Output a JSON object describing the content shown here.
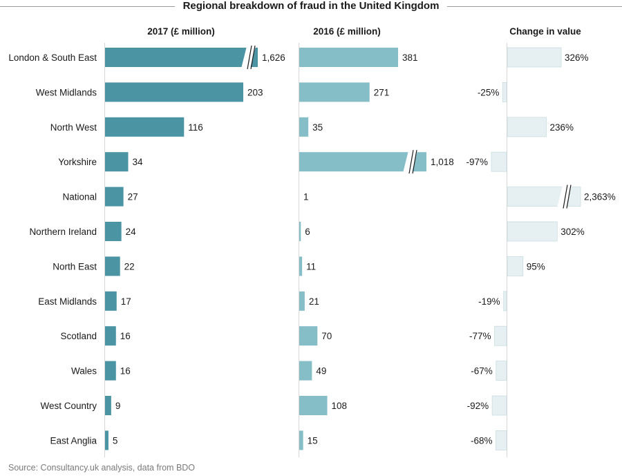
{
  "title": "Regional breakdown of fraud in the United Kingdom",
  "source": "Source: Consultancy.uk analysis, data from BDO",
  "colors": {
    "y2017": "#4a94a4",
    "y2016": "#86bec8",
    "change": "#e6f0f2",
    "change_border": "#c9dde1"
  },
  "chart_data": [
    {
      "type": "bar",
      "title": "2017 (£ million)",
      "categories": [
        "London & South East",
        "West Midlands",
        "North West",
        "Yorkshire",
        "National",
        "Northern Ireland",
        "North East",
        "East Midlands",
        "Scotland",
        "Wales",
        "West Country",
        "East Anglia"
      ],
      "values": [
        1626,
        203,
        116,
        34,
        27,
        24,
        22,
        17,
        16,
        16,
        9,
        5
      ],
      "labels": [
        "1,626",
        "203",
        "116",
        "34",
        "27",
        "24",
        "22",
        "17",
        "16",
        "16",
        "9",
        "5"
      ],
      "axis_break": "London & South East"
    },
    {
      "type": "bar",
      "title": "2016 (£ million)",
      "categories": [
        "London & South East",
        "West Midlands",
        "North West",
        "Yorkshire",
        "National",
        "Northern Ireland",
        "North East",
        "East Midlands",
        "Scotland",
        "Wales",
        "West Country",
        "East Anglia"
      ],
      "values": [
        381,
        271,
        35,
        1018,
        1,
        6,
        11,
        21,
        70,
        49,
        108,
        15
      ],
      "labels": [
        "381",
        "271",
        "35",
        "1,018",
        "1",
        "6",
        "11",
        "21",
        "70",
        "49",
        "108",
        "15"
      ],
      "axis_break": "Yorkshire"
    },
    {
      "type": "bar",
      "title": "Change in value",
      "categories": [
        "London & South East",
        "West Midlands",
        "North West",
        "Yorkshire",
        "National",
        "Northern Ireland",
        "North East",
        "East Midlands",
        "Scotland",
        "Wales",
        "West Country",
        "East Anglia"
      ],
      "values": [
        326,
        -25,
        236,
        -97,
        2363,
        302,
        95,
        -19,
        -77,
        -67,
        -92,
        -68
      ],
      "labels": [
        "326%",
        "-25%",
        "236%",
        "-97%",
        "2,363%",
        "302%",
        "95%",
        "-19%",
        "-77%",
        "-67%",
        "-92%",
        "-68%"
      ],
      "axis_break": "National"
    }
  ]
}
